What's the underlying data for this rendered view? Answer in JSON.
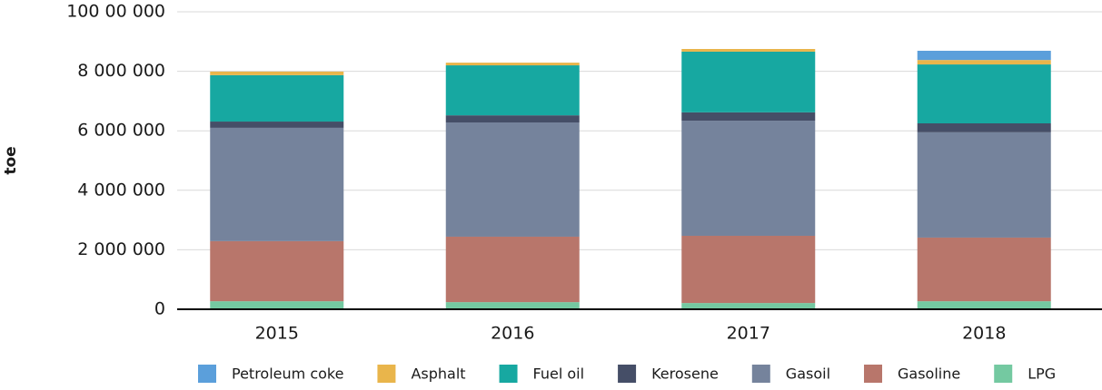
{
  "chart_data": {
    "type": "stacked_bar",
    "y_label": "toe",
    "categories": [
      "2015",
      "2016",
      "2017",
      "2018"
    ],
    "series": [
      {
        "name": "Petroleum coke",
        "color": "#5b9fdb",
        "values": [
          0,
          0,
          0,
          310000
        ]
      },
      {
        "name": "Asphalt",
        "color": "#e9b54b",
        "values": [
          120000,
          90000,
          90000,
          150000
        ]
      },
      {
        "name": "Fuel oil",
        "color": "#17a8a1",
        "values": [
          1560000,
          1680000,
          2040000,
          1980000
        ]
      },
      {
        "name": "Kerosene",
        "color": "#454e67",
        "values": [
          210000,
          240000,
          280000,
          300000
        ]
      },
      {
        "name": "Gasoil",
        "color": "#75839c",
        "values": [
          3810000,
          3840000,
          3870000,
          3540000
        ]
      },
      {
        "name": "Gasoline",
        "color": "#b8766b",
        "values": [
          2020000,
          2200000,
          2260000,
          2140000
        ]
      },
      {
        "name": "LPG",
        "color": "#74c9a1",
        "values": [
          270000,
          240000,
          210000,
          270000
        ]
      }
    ],
    "ylim": [
      0,
      10000000
    ],
    "yticks": [
      0,
      {
        "value": 2000000,
        "label": "2 000 000"
      },
      {
        "value": 4000000,
        "label": "4 000 000"
      },
      {
        "value": 6000000,
        "label": "6 000 000"
      },
      {
        "value": 8000000,
        "label": "8 000 000"
      },
      {
        "value": 10000000,
        "label": "100 00 000"
      }
    ],
    "grid": true
  }
}
